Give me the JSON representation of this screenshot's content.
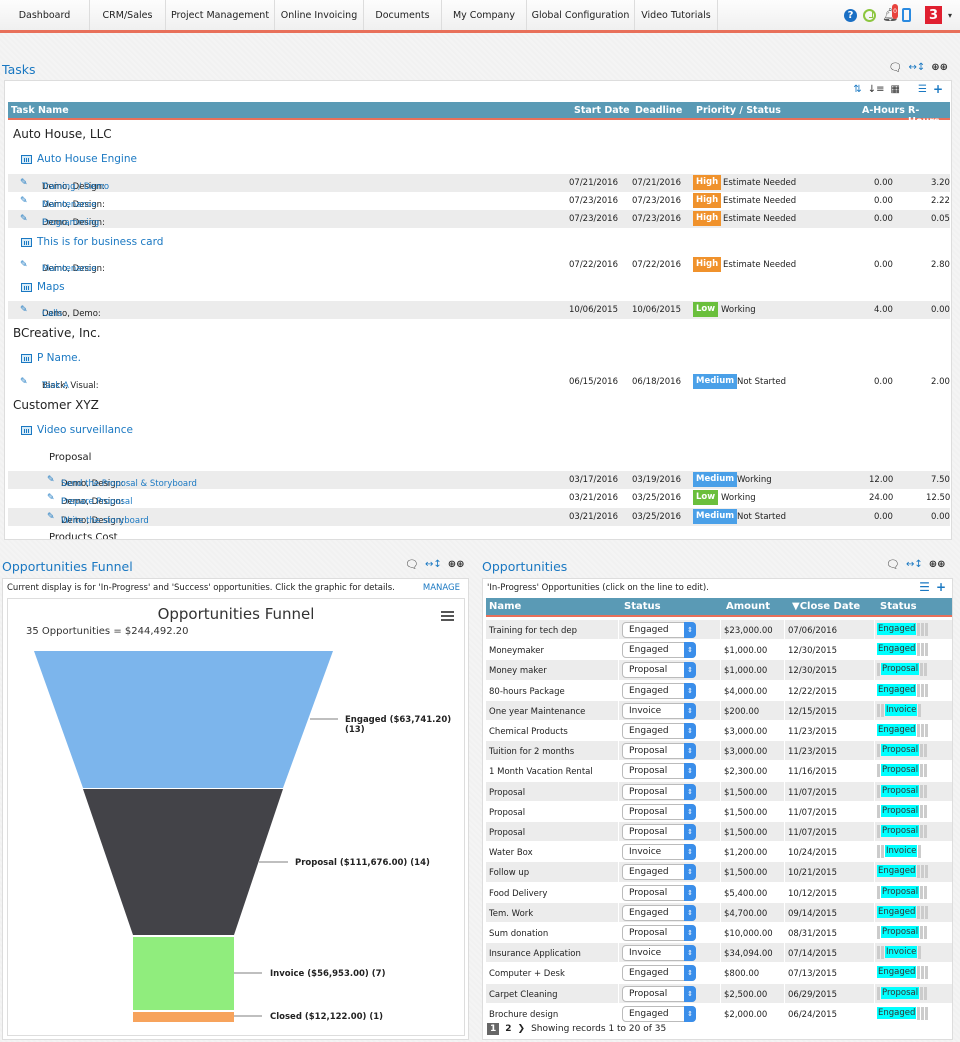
{
  "nav": {
    "items": [
      "Dashboard",
      "CRM/Sales",
      "Project Management",
      "Online Invoicing",
      "Documents",
      "My Company",
      "Global Configuration",
      "Video Tutorials"
    ],
    "icons": [
      "help-icon",
      "clock-icon",
      "bell-icon",
      "mobile-icon"
    ],
    "bell_badge": "0",
    "user_badge": "3",
    "caret": "▾"
  },
  "tasks": {
    "title": "Tasks",
    "tools": {
      "comment": "◯",
      "resize": "↔↕",
      "toggle": "●●"
    },
    "toolbar_icons": [
      "sort-az-icon",
      "sort-icon",
      "calendar-icon",
      "list-icon",
      "plus-icon"
    ],
    "columns": [
      "Task Name",
      "Start Date",
      "Deadline",
      "Priority / Status",
      "A-Hours",
      "R-Hours"
    ],
    "clients": [
      {
        "name": "Auto House, LLC"
      },
      {
        "name": "BCreative, Inc."
      },
      {
        "name": "Customer XYZ"
      }
    ],
    "projects": [
      "Auto House Engine",
      "This is for business card",
      "Maps",
      "P Name.",
      "Video surveillance"
    ],
    "subgroups": [
      "Proposal",
      "Products Cost"
    ],
    "rows": [
      {
        "who": "Demo, Design: ",
        "task": "Training / Demo",
        "start": "07/21/2016",
        "deadline": "07/21/2016",
        "priority": "High",
        "status": "Estimate Needed",
        "a": "0.00",
        "r": "3.20"
      },
      {
        "who": "Demo, Design: ",
        "task": "Maintenance",
        "start": "07/23/2016",
        "deadline": "07/23/2016",
        "priority": "High",
        "status": "Estimate Needed",
        "a": "0.00",
        "r": "2.22"
      },
      {
        "who": "Demo, Design: ",
        "task": "Programming",
        "start": "07/23/2016",
        "deadline": "07/23/2016",
        "priority": "High",
        "status": "Estimate Needed",
        "a": "0.00",
        "r": "0.05"
      },
      {
        "who": "Demo, Design: ",
        "task": "Maintenance",
        "start": "07/22/2016",
        "deadline": "07/22/2016",
        "priority": "High",
        "status": "Estimate Needed",
        "a": "0.00",
        "r": "2.80"
      },
      {
        "who": "Demo, Demo: ",
        "task": "Calls",
        "start": "10/06/2015",
        "deadline": "10/06/2015",
        "priority": "Low",
        "status": "Working",
        "a": "4.00",
        "r": "0.00"
      },
      {
        "who": "Black, Visual: ",
        "task": "Task A",
        "start": "06/15/2016",
        "deadline": "06/18/2016",
        "priority": "Medium",
        "status": "Not Started",
        "a": "0.00",
        "r": "2.00"
      },
      {
        "who": "Demo, Design: ",
        "task": "Send the Proposal & Storyboard",
        "start": "03/17/2016",
        "deadline": "03/19/2016",
        "priority": "Medium",
        "status": "Working",
        "a": "12.00",
        "r": "7.50"
      },
      {
        "who": "Demo, Design: ",
        "task": "Prepare Proposal",
        "start": "03/21/2016",
        "deadline": "03/25/2016",
        "priority": "Low",
        "status": "Working",
        "a": "24.00",
        "r": "12.50"
      },
      {
        "who": "Demo, Design: ",
        "task": "Write the storyboard",
        "start": "03/21/2016",
        "deadline": "03/25/2016",
        "priority": "Medium",
        "status": "Not Started",
        "a": "0.00",
        "r": "0.00"
      }
    ]
  },
  "funnel": {
    "title": "Opportunities Funnel",
    "description": "Current display is for 'In-Progress' and 'Success' opportunities. Click the graphic for details.",
    "manage_label": "MANAGE",
    "chart_title": "Opportunities Funnel",
    "chart_subtitle": "35 Opportunities = $244,492.20"
  },
  "chart_data": {
    "type": "funnel",
    "title": "Opportunities Funnel",
    "subtitle": "35 Opportunities = $244,492.20",
    "categories": [
      "Engaged",
      "Proposal",
      "Invoice",
      "Closed"
    ],
    "values": [
      63741.2,
      111676.0,
      56953.0,
      12122.0
    ],
    "counts": [
      13,
      14,
      7,
      1
    ],
    "colors": [
      "#7cb5ec",
      "#434348",
      "#90ed7d",
      "#f7a35c"
    ],
    "labels": [
      "Engaged ($63,741.20) (13)",
      "Proposal ($111,676.00) (14)",
      "Invoice ($56,953.00) (7)",
      "Closed ($12,122.00) (1)"
    ]
  },
  "opportunities": {
    "title": "Opportunities",
    "description": "'In-Progress' Opportunities (click on the line to edit).",
    "columns": [
      "Name",
      "Status",
      "Amount",
      "▼Close Date",
      "Status"
    ],
    "rows": [
      {
        "name": "Training for tech dep",
        "status": "Engaged",
        "amount": "$23,000.00",
        "close": "07/06/2016"
      },
      {
        "name": "Moneymaker",
        "status": "Engaged",
        "amount": "$1,000.00",
        "close": "12/30/2015"
      },
      {
        "name": "Money maker",
        "status": "Proposal",
        "amount": "$1,000.00",
        "close": "12/30/2015"
      },
      {
        "name": "80-hours Package",
        "status": "Engaged",
        "amount": "$4,000.00",
        "close": "12/22/2015"
      },
      {
        "name": "One year Maintenance",
        "status": "Invoice",
        "amount": "$200.00",
        "close": "12/15/2015"
      },
      {
        "name": "Chemical Products",
        "status": "Engaged",
        "amount": "$3,000.00",
        "close": "11/23/2015"
      },
      {
        "name": "Tuition for 2 months",
        "status": "Proposal",
        "amount": "$3,000.00",
        "close": "11/23/2015"
      },
      {
        "name": "1 Month Vacation Rental",
        "status": "Proposal",
        "amount": "$2,300.00",
        "close": "11/16/2015"
      },
      {
        "name": "Proposal",
        "status": "Proposal",
        "amount": "$1,500.00",
        "close": "11/07/2015"
      },
      {
        "name": "Proposal",
        "status": "Proposal",
        "amount": "$1,500.00",
        "close": "11/07/2015"
      },
      {
        "name": "Proposal",
        "status": "Proposal",
        "amount": "$1,500.00",
        "close": "11/07/2015"
      },
      {
        "name": "Water Box",
        "status": "Invoice",
        "amount": "$1,200.00",
        "close": "10/24/2015"
      },
      {
        "name": "Follow up",
        "status": "Engaged",
        "amount": "$1,500.00",
        "close": "10/21/2015"
      },
      {
        "name": "Food Delivery",
        "status": "Proposal",
        "amount": "$5,400.00",
        "close": "10/12/2015"
      },
      {
        "name": "Tem. Work",
        "status": "Engaged",
        "amount": "$4,700.00",
        "close": "09/14/2015"
      },
      {
        "name": "Sum donation",
        "status": "Proposal",
        "amount": "$10,000.00",
        "close": "08/31/2015"
      },
      {
        "name": "Insurance Application",
        "status": "Invoice",
        "amount": "$34,094.00",
        "close": "07/14/2015"
      },
      {
        "name": "Computer + Desk",
        "status": "Engaged",
        "amount": "$800.00",
        "close": "07/13/2015"
      },
      {
        "name": "Carpet Cleaning",
        "status": "Proposal",
        "amount": "$2,500.00",
        "close": "06/29/2015"
      },
      {
        "name": "Brochure design",
        "status": "Engaged",
        "amount": "$2,000.00",
        "close": "06/24/2015"
      }
    ],
    "pager": {
      "current": "1",
      "next_page": "2",
      "next_arrow": "❯",
      "summary": "Showing records 1 to 20 of 35"
    }
  }
}
